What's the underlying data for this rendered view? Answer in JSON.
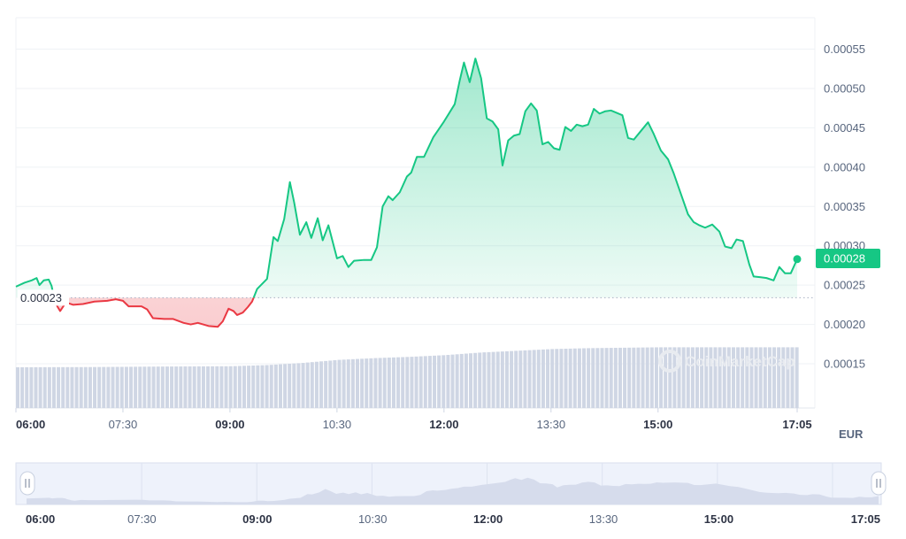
{
  "chart_data": {
    "type": "line",
    "currency": "EUR",
    "y_ticks": [
      "0.00055",
      "0.00050",
      "0.00045",
      "0.00040",
      "0.00035",
      "0.00030",
      "0.00025",
      "0.00020",
      "0.00015"
    ],
    "ylim": [
      0.00011,
      0.00059
    ],
    "xlim": [
      0,
      11.1
    ],
    "x_ticks": [
      {
        "t": 0,
        "label": "06:00",
        "bold": true
      },
      {
        "t": 1.5,
        "label": "07:30",
        "bold": false
      },
      {
        "t": 3,
        "label": "09:00",
        "bold": true
      },
      {
        "t": 4.5,
        "label": "10:30",
        "bold": false
      },
      {
        "t": 6,
        "label": "12:00",
        "bold": true
      },
      {
        "t": 7.5,
        "label": "13:30",
        "bold": false
      },
      {
        "t": 9,
        "label": "15:00",
        "bold": true
      },
      {
        "t": 10.95,
        "label": "17:05",
        "bold": true
      }
    ],
    "reference_price": 0.000234,
    "reference_label": "0.00023",
    "last_price_label": "0.00028",
    "last_price": 0.000283,
    "colors": {
      "up": "#16c784",
      "down": "#ea3943",
      "volume": "#cfd6e4",
      "grid": "#eff2f5",
      "label_bg": "#16c784"
    },
    "price": [
      [
        0.0,
        0.000248
      ],
      [
        0.12,
        0.000253
      ],
      [
        0.22,
        0.000256
      ],
      [
        0.29,
        0.000259
      ],
      [
        0.33,
        0.00025
      ],
      [
        0.39,
        0.000256
      ],
      [
        0.46,
        0.000257
      ],
      [
        0.5,
        0.000249
      ],
      [
        0.52,
        0.00024
      ],
      [
        0.55,
        0.000231
      ],
      [
        0.58,
        0.000223
      ],
      [
        0.62,
        0.000217
      ],
      [
        0.7,
        0.000228
      ],
      [
        0.8,
        0.000225
      ],
      [
        0.94,
        0.000226
      ],
      [
        1.1,
        0.000229
      ],
      [
        1.28,
        0.00023
      ],
      [
        1.4,
        0.000232
      ],
      [
        1.5,
        0.00023
      ],
      [
        1.58,
        0.000223
      ],
      [
        1.76,
        0.000223
      ],
      [
        1.84,
        0.000219
      ],
      [
        1.92,
        0.000208
      ],
      [
        2.08,
        0.000207
      ],
      [
        2.2,
        0.000207
      ],
      [
        2.35,
        0.000202
      ],
      [
        2.45,
        0.0002
      ],
      [
        2.55,
        0.000202
      ],
      [
        2.7,
        0.000198
      ],
      [
        2.83,
        0.000197
      ],
      [
        2.9,
        0.000204
      ],
      [
        2.98,
        0.00022
      ],
      [
        3.05,
        0.000217
      ],
      [
        3.1,
        0.000212
      ],
      [
        3.18,
        0.000215
      ],
      [
        3.25,
        0.000222
      ],
      [
        3.31,
        0.000229
      ],
      [
        3.38,
        0.000245
      ],
      [
        3.52,
        0.000258
      ],
      [
        3.61,
        0.000311
      ],
      [
        3.67,
        0.000306
      ],
      [
        3.76,
        0.000334
      ],
      [
        3.84,
        0.000381
      ],
      [
        3.9,
        0.000355
      ],
      [
        3.98,
        0.000314
      ],
      [
        4.07,
        0.00033
      ],
      [
        4.14,
        0.00031
      ],
      [
        4.23,
        0.000335
      ],
      [
        4.3,
        0.000307
      ],
      [
        4.38,
        0.000326
      ],
      [
        4.5,
        0.000284
      ],
      [
        4.58,
        0.000287
      ],
      [
        4.66,
        0.000273
      ],
      [
        4.74,
        0.000281
      ],
      [
        4.88,
        0.000282
      ],
      [
        4.98,
        0.000282
      ],
      [
        5.06,
        0.000298
      ],
      [
        5.14,
        0.00035
      ],
      [
        5.22,
        0.000363
      ],
      [
        5.28,
        0.000358
      ],
      [
        5.38,
        0.000368
      ],
      [
        5.48,
        0.000388
      ],
      [
        5.54,
        0.000393
      ],
      [
        5.62,
        0.000413
      ],
      [
        5.72,
        0.000413
      ],
      [
        5.85,
        0.000438
      ],
      [
        6.0,
        0.000458
      ],
      [
        6.15,
        0.00048
      ],
      [
        6.22,
        0.00051
      ],
      [
        6.28,
        0.000533
      ],
      [
        6.36,
        0.000508
      ],
      [
        6.44,
        0.000538
      ],
      [
        6.52,
        0.000513
      ],
      [
        6.6,
        0.000462
      ],
      [
        6.68,
        0.000458
      ],
      [
        6.76,
        0.000448
      ],
      [
        6.82,
        0.000402
      ],
      [
        6.9,
        0.000434
      ],
      [
        6.98,
        0.00044
      ],
      [
        7.06,
        0.000442
      ],
      [
        7.14,
        0.000471
      ],
      [
        7.22,
        0.000481
      ],
      [
        7.3,
        0.000472
      ],
      [
        7.38,
        0.000429
      ],
      [
        7.46,
        0.000432
      ],
      [
        7.54,
        0.000424
      ],
      [
        7.62,
        0.000422
      ],
      [
        7.7,
        0.000451
      ],
      [
        7.78,
        0.000446
      ],
      [
        7.86,
        0.000454
      ],
      [
        7.94,
        0.000452
      ],
      [
        8.02,
        0.000454
      ],
      [
        8.1,
        0.000474
      ],
      [
        8.18,
        0.000468
      ],
      [
        8.26,
        0.000471
      ],
      [
        8.34,
        0.000472
      ],
      [
        8.5,
        0.000466
      ],
      [
        8.58,
        0.000437
      ],
      [
        8.66,
        0.000435
      ],
      [
        8.76,
        0.000446
      ],
      [
        8.86,
        0.000457
      ],
      [
        8.94,
        0.000442
      ],
      [
        9.04,
        0.000421
      ],
      [
        9.14,
        0.00041
      ],
      [
        9.22,
        0.000392
      ],
      [
        9.32,
        0.000366
      ],
      [
        9.42,
        0.00034
      ],
      [
        9.5,
        0.00033
      ],
      [
        9.58,
        0.000326
      ],
      [
        9.66,
        0.000323
      ],
      [
        9.76,
        0.000327
      ],
      [
        9.86,
        0.000318
      ],
      [
        9.94,
        0.000299
      ],
      [
        10.03,
        0.000297
      ],
      [
        10.1,
        0.000308
      ],
      [
        10.19,
        0.000306
      ],
      [
        10.28,
        0.000276
      ],
      [
        10.34,
        0.000261
      ],
      [
        10.44,
        0.00026
      ],
      [
        10.52,
        0.000259
      ],
      [
        10.62,
        0.000256
      ],
      [
        10.7,
        0.000273
      ],
      [
        10.78,
        0.000265
      ],
      [
        10.86,
        0.000265
      ],
      [
        10.95,
        0.000283
      ]
    ],
    "volume": [
      [
        0.0,
        0.47
      ],
      [
        1.0,
        0.472
      ],
      [
        2.0,
        0.478
      ],
      [
        3.0,
        0.482
      ],
      [
        3.5,
        0.495
      ],
      [
        4.0,
        0.52
      ],
      [
        4.5,
        0.555
      ],
      [
        5.0,
        0.575
      ],
      [
        5.5,
        0.59
      ],
      [
        6.0,
        0.61
      ],
      [
        6.5,
        0.64
      ],
      [
        7.0,
        0.66
      ],
      [
        7.5,
        0.68
      ],
      [
        8.0,
        0.69
      ],
      [
        8.5,
        0.695
      ],
      [
        9.0,
        0.7
      ],
      [
        9.5,
        0.7
      ],
      [
        10.0,
        0.7
      ],
      [
        10.5,
        0.7
      ],
      [
        11.0,
        0.7
      ]
    ],
    "navigator": {
      "x_ticks": [
        {
          "t": 0,
          "label": "06:00",
          "bold": true
        },
        {
          "t": 1.5,
          "label": "07:30",
          "bold": false
        },
        {
          "t": 3,
          "label": "09:00",
          "bold": true
        },
        {
          "t": 4.5,
          "label": "10:30",
          "bold": false
        },
        {
          "t": 6,
          "label": "12:00",
          "bold": true
        },
        {
          "t": 7.5,
          "label": "13:30",
          "bold": false
        },
        {
          "t": 9,
          "label": "15:00",
          "bold": true
        },
        {
          "t": 11.1,
          "label": "17:05",
          "bold": true
        }
      ]
    }
  }
}
